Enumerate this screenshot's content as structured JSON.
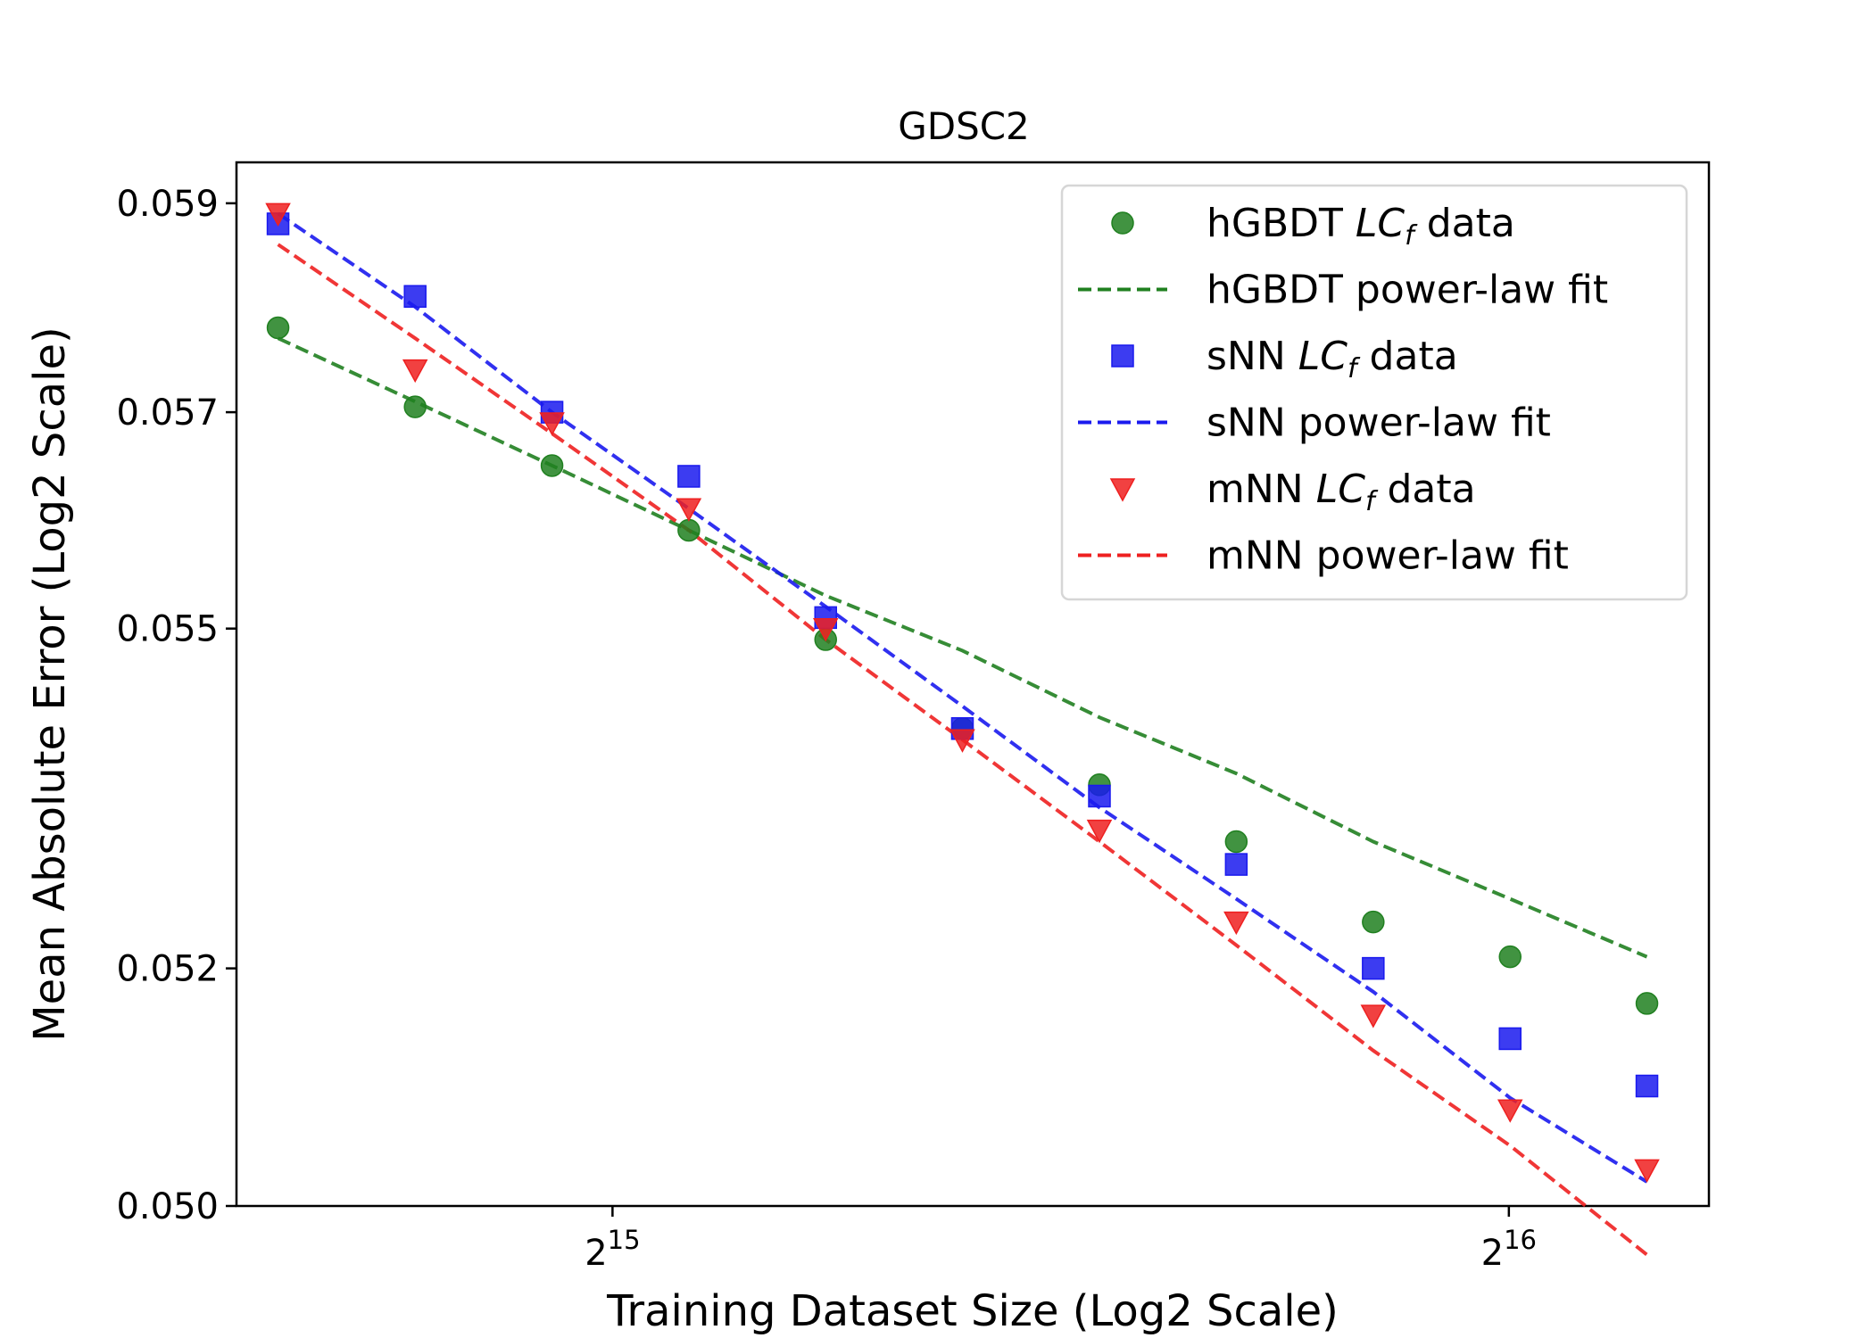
{
  "chart_data": {
    "type": "line",
    "title": "GDSC2",
    "xlabel": "Training Dataset Size (Log2 Scale)",
    "ylabel": "Mean Absolute Error (Log2 Scale)",
    "x_scale": "log2",
    "y_scale": "log2",
    "xlim": [
      24500,
      76500
    ],
    "ylim": [
      0.05,
      0.0594
    ],
    "x_ticks": [
      {
        "value": 32768,
        "base": "2",
        "exp": "15"
      },
      {
        "value": 65536,
        "base": "2",
        "exp": "16"
      }
    ],
    "y_ticks": [
      {
        "value": 0.05,
        "label": "0.050"
      },
      {
        "value": 0.052,
        "label": "0.052"
      },
      {
        "value": 0.055,
        "label": "0.055"
      },
      {
        "value": 0.057,
        "label": "0.057"
      },
      {
        "value": 0.059,
        "label": "0.059"
      }
    ],
    "x": [
      25300,
      28130,
      31270,
      34760,
      38640,
      42950,
      47750,
      53080,
      59010,
      65600,
      72920
    ],
    "series": [
      {
        "name": "hGBDT",
        "data_label": {
          "pre": "hGBDT ",
          "sym": "LC",
          "sub": "f",
          "post": " data"
        },
        "fit_label": "hGBDT power-law fit",
        "color": "#208020",
        "marker": "circle",
        "values": [
          0.0578,
          0.05705,
          0.0565,
          0.0559,
          0.0549,
          0.0541,
          0.0536,
          0.0531,
          0.0524,
          0.0521,
          0.0517
        ],
        "fit": [
          0.0577,
          0.0571,
          0.0565,
          0.0559,
          0.0553,
          0.0548,
          0.0542,
          0.0537,
          0.0531,
          0.0526,
          0.0521
        ]
      },
      {
        "name": "sNN",
        "data_label": {
          "pre": "sNN ",
          "sym": "LC",
          "sub": "f",
          "post": " data"
        },
        "fit_label": "sNN power-law fit",
        "color": "#1a1aee",
        "marker": "square",
        "values": [
          0.0588,
          0.0581,
          0.057,
          0.0564,
          0.0551,
          0.0541,
          0.0535,
          0.0529,
          0.052,
          0.0514,
          0.051
        ],
        "fit": [
          0.0589,
          0.058,
          0.057,
          0.0561,
          0.0552,
          0.0543,
          0.0534,
          0.0526,
          0.0518,
          0.0509,
          0.0502
        ]
      },
      {
        "name": "mNN",
        "data_label": {
          "pre": "mNN ",
          "sym": "LC",
          "sub": "f",
          "post": " data"
        },
        "fit_label": "mNN power-law fit",
        "color": "#ee2020",
        "marker": "triangle-down",
        "values": [
          0.0589,
          0.0574,
          0.0569,
          0.0561,
          0.055,
          0.054,
          0.0532,
          0.0524,
          0.0516,
          0.0508,
          0.0503
        ],
        "fit": [
          0.0586,
          0.0577,
          0.0568,
          0.0559,
          0.0549,
          0.054,
          0.0531,
          0.0522,
          0.0513,
          0.0505,
          0.0496
        ]
      }
    ],
    "legend_position": "upper right",
    "grid": false
  }
}
